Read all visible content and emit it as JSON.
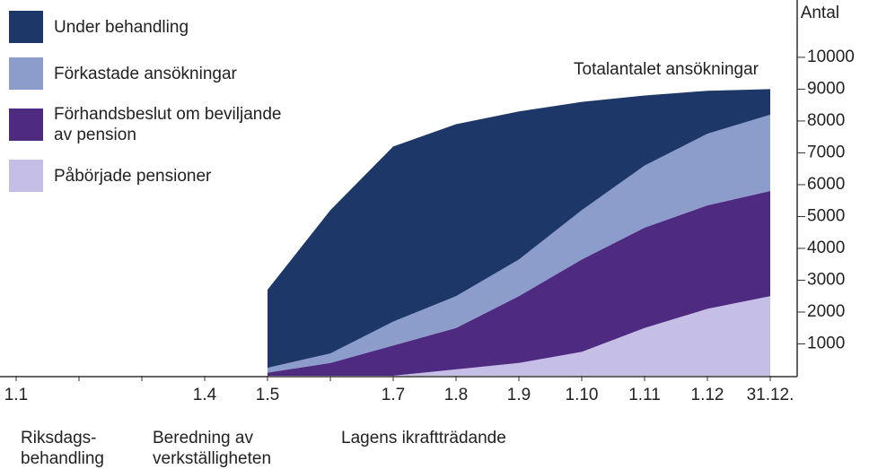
{
  "chart_data": {
    "type": "stacked_area",
    "y_axis_label": "Antal",
    "annotation": "Totalantalet ansökningar",
    "categories": [
      "1.1",
      null,
      null,
      "1.4",
      "1.5",
      null,
      "1.7",
      "1.8",
      "1.9",
      "1.10",
      "1.11",
      "1.12",
      "31.12."
    ],
    "phase_labels": [
      {
        "lines": [
          "Riksdags-",
          "behandling"
        ],
        "category": 0
      },
      {
        "lines": [
          "Beredning av",
          "verkställigheten"
        ],
        "category": 3
      },
      {
        "lines": [
          "Lagens ikraftträdande"
        ],
        "category": 6
      }
    ],
    "series": [
      {
        "name": "Under behandling",
        "color": "#1c3768",
        "values": [
          null,
          null,
          null,
          null,
          2450,
          4500,
          5500,
          5400,
          4650,
          3400,
          2200,
          1350,
          800
        ]
      },
      {
        "name": "Förkastade ansökningar",
        "color": "#8c9ccb",
        "values": [
          null,
          null,
          null,
          null,
          150,
          300,
          750,
          1000,
          1150,
          1550,
          1950,
          2250,
          2400
        ]
      },
      {
        "name": "Förhandsbeslut om beviljande av pension",
        "color": "#4e2a80",
        "values": [
          null,
          null,
          null,
          null,
          100,
          400,
          950,
          1300,
          2100,
          2900,
          3150,
          3250,
          3300
        ]
      },
      {
        "name": "Påbörjade pensioner",
        "color": "#c5bee6",
        "values": [
          null,
          null,
          null,
          null,
          0,
          0,
          0,
          200,
          400,
          750,
          1500,
          2100,
          2500
        ]
      }
    ],
    "ylim": [
      0,
      11800
    ],
    "yticks": [
      1000,
      2000,
      3000,
      4000,
      5000,
      6000,
      7000,
      8000,
      9000,
      10000
    ]
  }
}
